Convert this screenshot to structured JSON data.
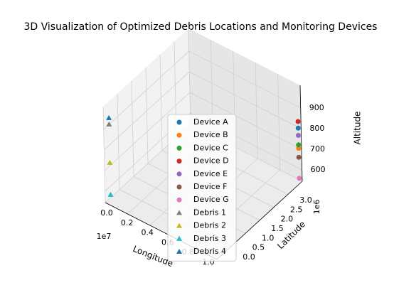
{
  "chart_data": {
    "type": "scatter3d",
    "title": "3D Visualization of Optimized Debris Locations and Monitoring Devices",
    "xlabel": "Longitude",
    "ylabel": "Latitude",
    "zlabel": "Altitude",
    "xoffset": "1e7",
    "yoffset": "1e6",
    "xlim": [
      0,
      10000000
    ],
    "ylim": [
      0,
      3000000
    ],
    "zlim": [
      545,
      1010
    ],
    "xticks": [
      {
        "value": 0,
        "label": "0.0"
      },
      {
        "value": 2000000,
        "label": "0.2"
      },
      {
        "value": 4000000,
        "label": "0.4"
      },
      {
        "value": 6000000,
        "label": "0.6"
      },
      {
        "value": 8000000,
        "label": "0.8"
      },
      {
        "value": 10000000,
        "label": "1.0"
      }
    ],
    "yticks": [
      {
        "value": 0,
        "label": "0.0"
      },
      {
        "value": 500000,
        "label": "0.5"
      },
      {
        "value": 1000000,
        "label": "1.0"
      },
      {
        "value": 1500000,
        "label": "1.5"
      },
      {
        "value": 2000000,
        "label": "2.0"
      },
      {
        "value": 2500000,
        "label": "2.5"
      },
      {
        "value": 3000000,
        "label": "3.0"
      }
    ],
    "zticks": [
      600,
      700,
      800,
      900
    ],
    "grid": true,
    "series": [
      {
        "name": "Device A",
        "color": "#1f77b4",
        "marker": "circle",
        "x": [
          10000000
        ],
        "y": [
          2900000
        ],
        "z": [
          815
        ]
      },
      {
        "name": "Device B",
        "color": "#ff7f0e",
        "marker": "circle",
        "x": [
          10000000
        ],
        "y": [
          2900000
        ],
        "z": [
          717
        ]
      },
      {
        "name": "Device C",
        "color": "#2ca02c",
        "marker": "circle",
        "x": [
          10000000
        ],
        "y": [
          2900000
        ],
        "z": [
          734
        ]
      },
      {
        "name": "Device D",
        "color": "#d62728",
        "marker": "circle",
        "x": [
          10000000
        ],
        "y": [
          2900000
        ],
        "z": [
          847
        ]
      },
      {
        "name": "Device E",
        "color": "#9467bd",
        "marker": "circle",
        "x": [
          10000000
        ],
        "y": [
          2900000
        ],
        "z": [
          780
        ]
      },
      {
        "name": "Device F",
        "color": "#8c564b",
        "marker": "circle",
        "x": [
          10000000
        ],
        "y": [
          2900000
        ],
        "z": [
          674
        ]
      },
      {
        "name": "Device G",
        "color": "#e377c2",
        "marker": "circle",
        "x": [
          10000000
        ],
        "y": [
          2900000
        ],
        "z": [
          572
        ]
      },
      {
        "name": "Debris 1",
        "color": "#7f7f7f",
        "marker": "triangle",
        "x": [
          500000
        ],
        "y": [
          0
        ],
        "z": [
          938
        ]
      },
      {
        "name": "Debris 2",
        "color": "#bcbd22",
        "marker": "triangle",
        "x": [
          500000
        ],
        "y": [
          0
        ],
        "z": [
          752
        ]
      },
      {
        "name": "Debris 3",
        "color": "#17becf",
        "marker": "triangle",
        "x": [
          500000
        ],
        "y": [
          0
        ],
        "z": [
          597
        ]
      },
      {
        "name": "Debris 4",
        "color": "#1f77b4",
        "marker": "triangle",
        "x": [
          500000
        ],
        "y": [
          0
        ],
        "z": [
          969
        ]
      }
    ]
  }
}
